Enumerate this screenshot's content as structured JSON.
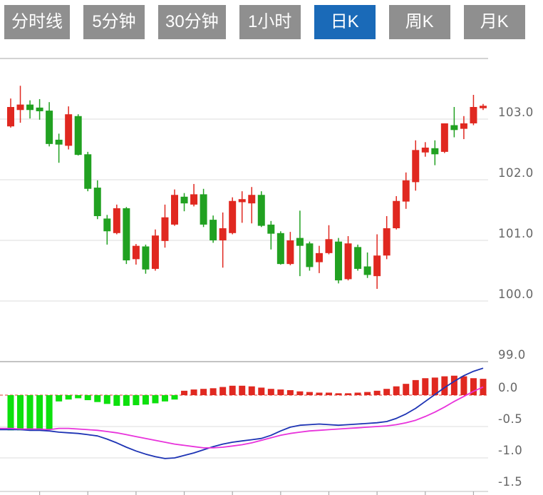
{
  "toolbar": {
    "buttons": [
      {
        "label": "分时线",
        "active": false
      },
      {
        "label": "5分钟",
        "active": false
      },
      {
        "label": "30分钟",
        "active": false
      },
      {
        "label": "1小时",
        "active": false
      },
      {
        "label": "日K",
        "active": true
      },
      {
        "label": "周K",
        "active": false
      },
      {
        "label": "月K",
        "active": false
      }
    ]
  },
  "colors": {
    "up": "#e02820",
    "down": "#21a121",
    "hist_pos": "#e02820",
    "hist_neg": "#0de00d",
    "dif_line": "#1d33b4",
    "dea_line": "#e833db",
    "zero_dash": "#e0382e",
    "button_bg": "#8f8f8f",
    "button_active_bg": "#1a6ab8",
    "button_text": "#ffffff",
    "grid_light": "#e4e4e4",
    "grid_mid": "#b9b9b9",
    "grid_dark": "#9f9f9f",
    "axis_line": "#c9c9c9",
    "tick": "#aaaaaa",
    "axis_label": "#666666",
    "background": "#ffffff"
  },
  "chart_data": {
    "type": "candlestick",
    "x_ticks_every": 5,
    "x_ticks_offset": 3,
    "panels": [
      {
        "name": "price",
        "ylim": [
          99.0,
          104.0
        ],
        "grid_prices": [
          104,
          103,
          102,
          101,
          100,
          99
        ],
        "axis_labels": [
          {
            "text": "103.0",
            "price": 103
          },
          {
            "text": "102.0",
            "price": 102
          },
          {
            "text": "101.0",
            "price": 101
          },
          {
            "text": "100.0",
            "price": 100
          },
          {
            "text": "99.0",
            "price": 99
          }
        ],
        "candles": [
          [
            102.88,
            103.34,
            102.86,
            103.2
          ],
          [
            103.15,
            103.55,
            102.94,
            103.24
          ],
          [
            103.24,
            103.31,
            103.01,
            103.15
          ],
          [
            103.19,
            103.33,
            102.99,
            103.13
          ],
          [
            103.14,
            103.28,
            102.55,
            102.59
          ],
          [
            102.66,
            102.76,
            102.28,
            102.58
          ],
          [
            102.56,
            103.21,
            102.5,
            103.08
          ],
          [
            103.05,
            103.08,
            102.4,
            102.41
          ],
          [
            102.42,
            102.46,
            101.81,
            101.85
          ],
          [
            101.87,
            101.99,
            101.35,
            101.4
          ],
          [
            101.36,
            101.42,
            100.93,
            101.15
          ],
          [
            101.12,
            101.59,
            101.1,
            101.53
          ],
          [
            101.53,
            101.55,
            100.61,
            100.67
          ],
          [
            100.69,
            100.94,
            100.6,
            100.91
          ],
          [
            100.9,
            100.93,
            100.45,
            100.52
          ],
          [
            100.53,
            101.18,
            100.5,
            101.08
          ],
          [
            100.99,
            101.59,
            100.88,
            101.38
          ],
          [
            101.26,
            101.84,
            101.24,
            101.75
          ],
          [
            101.72,
            101.78,
            101.48,
            101.61
          ],
          [
            101.59,
            101.93,
            101.56,
            101.76
          ],
          [
            101.76,
            101.85,
            101.22,
            101.26
          ],
          [
            101.34,
            101.41,
            100.96,
            101.0
          ],
          [
            101.0,
            101.46,
            100.55,
            101.2
          ],
          [
            101.12,
            101.71,
            101.1,
            101.65
          ],
          [
            101.63,
            101.81,
            101.29,
            101.68
          ],
          [
            101.61,
            101.88,
            101.28,
            101.75
          ],
          [
            101.75,
            101.81,
            101.22,
            101.24
          ],
          [
            101.26,
            101.32,
            100.85,
            101.11
          ],
          [
            101.12,
            101.15,
            100.6,
            100.61
          ],
          [
            100.61,
            101.14,
            100.59,
            101.0
          ],
          [
            101.04,
            101.49,
            100.41,
            100.91
          ],
          [
            100.95,
            100.98,
            100.5,
            100.56
          ],
          [
            100.64,
            100.91,
            100.46,
            100.79
          ],
          [
            100.79,
            101.25,
            100.77,
            101.02
          ],
          [
            100.98,
            101.04,
            100.29,
            100.34
          ],
          [
            100.36,
            101.07,
            100.34,
            100.95
          ],
          [
            100.89,
            100.93,
            100.5,
            100.53
          ],
          [
            100.57,
            100.8,
            100.38,
            100.43
          ],
          [
            100.41,
            101.1,
            100.2,
            100.75
          ],
          [
            100.75,
            101.4,
            100.69,
            101.2
          ],
          [
            101.2,
            101.73,
            101.18,
            101.65
          ],
          [
            101.64,
            102.12,
            101.52,
            101.99
          ],
          [
            101.96,
            102.65,
            101.82,
            102.49
          ],
          [
            102.45,
            102.62,
            102.38,
            102.53
          ],
          [
            102.52,
            102.65,
            102.24,
            102.42
          ],
          [
            102.46,
            102.93,
            102.44,
            102.93
          ],
          [
            102.9,
            103.2,
            102.7,
            102.82
          ],
          [
            102.84,
            103.05,
            102.67,
            102.93
          ],
          [
            102.93,
            103.4,
            102.9,
            103.2
          ],
          [
            103.18,
            103.25,
            103.15,
            103.22
          ]
        ]
      },
      {
        "name": "macd",
        "ylim": [
          -1.5,
          0.6
        ],
        "grid_values": [
          -0.5,
          -1.0
        ],
        "zero_line": 0.0,
        "axis_labels": [
          {
            "text": "0.0",
            "value": 0
          },
          {
            "text": "-0.5",
            "value": -0.5
          },
          {
            "text": "-1.0",
            "value": -1.0
          },
          {
            "text": "-1.5",
            "value": -1.5
          }
        ],
        "histogram": [
          -0.56,
          -0.56,
          -0.55,
          -0.56,
          -0.55,
          -0.1,
          -0.07,
          -0.05,
          -0.08,
          -0.11,
          -0.14,
          -0.17,
          -0.17,
          -0.16,
          -0.15,
          -0.13,
          -0.1,
          -0.07,
          0.07,
          0.09,
          0.1,
          0.11,
          0.13,
          0.15,
          0.15,
          0.14,
          0.12,
          0.1,
          0.09,
          0.08,
          0.06,
          0.05,
          0.04,
          0.04,
          0.03,
          0.03,
          0.04,
          0.05,
          0.07,
          0.1,
          0.14,
          0.18,
          0.24,
          0.27,
          0.28,
          0.3,
          0.31,
          0.3,
          0.27,
          0.26
        ],
        "series": [
          {
            "name": "DIF",
            "color_key": "dif_line",
            "values": [
              -0.55,
              -0.55,
              -0.56,
              -0.56,
              -0.57,
              -0.59,
              -0.6,
              -0.61,
              -0.63,
              -0.65,
              -0.7,
              -0.76,
              -0.83,
              -0.89,
              -0.94,
              -0.98,
              -1.01,
              -1.0,
              -0.96,
              -0.92,
              -0.87,
              -0.82,
              -0.78,
              -0.75,
              -0.73,
              -0.71,
              -0.69,
              -0.64,
              -0.57,
              -0.51,
              -0.48,
              -0.47,
              -0.46,
              -0.47,
              -0.48,
              -0.47,
              -0.46,
              -0.45,
              -0.44,
              -0.42,
              -0.37,
              -0.3,
              -0.21,
              -0.1,
              0.01,
              0.12,
              0.22,
              0.31,
              0.38,
              0.43
            ]
          },
          {
            "name": "DEA",
            "color_key": "dea_line",
            "values": [
              -0.53,
              -0.54,
              -0.54,
              -0.54,
              -0.55,
              -0.53,
              -0.53,
              -0.54,
              -0.55,
              -0.56,
              -0.58,
              -0.6,
              -0.63,
              -0.66,
              -0.69,
              -0.72,
              -0.75,
              -0.78,
              -0.8,
              -0.82,
              -0.84,
              -0.84,
              -0.83,
              -0.81,
              -0.79,
              -0.76,
              -0.72,
              -0.68,
              -0.64,
              -0.61,
              -0.59,
              -0.57,
              -0.56,
              -0.55,
              -0.54,
              -0.53,
              -0.52,
              -0.51,
              -0.5,
              -0.49,
              -0.47,
              -0.44,
              -0.4,
              -0.34,
              -0.27,
              -0.19,
              -0.1,
              -0.02,
              0.06,
              0.13
            ]
          }
        ]
      }
    ]
  }
}
